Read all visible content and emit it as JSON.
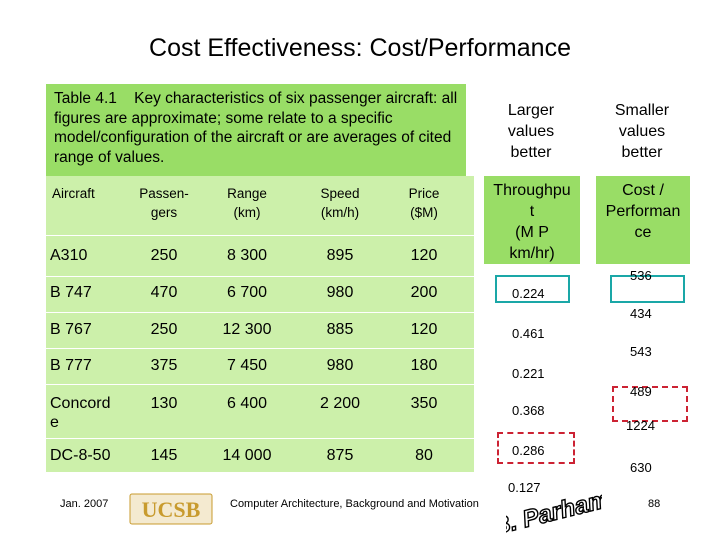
{
  "slide": {
    "title": "Cost Effectiveness: Cost/Performance",
    "caption": "Table 4.1    Key characteristics of six passenger aircraft: all figures are approximate; some relate to a specific model/configuration of the aircraft or are averages of cited range of values."
  },
  "table": {
    "headers": [
      "Aircraft",
      "Passen-\ngers",
      "Range\n(km)",
      "Speed\n(km/h)",
      "Price\n($M)"
    ],
    "rows": [
      [
        "A310",
        "250",
        "8 300",
        "895",
        "120"
      ],
      [
        "B 747",
        "470",
        "6 700",
        "980",
        "200"
      ],
      [
        "B 767",
        "250",
        "12 300",
        "885",
        "120"
      ],
      [
        "B 777",
        "375",
        "7 450",
        "980",
        "180"
      ],
      [
        "Concord\ne",
        "130",
        "6 400",
        "2 200",
        "350"
      ],
      [
        "DC-8-50",
        "145",
        "14 000",
        "875",
        "80"
      ]
    ]
  },
  "larger": {
    "header": "Larger\nvalues\nbetter",
    "box_label": "Throughpu\nt\n(M P\nkm/hr)",
    "values": [
      "0.224",
      "0.461",
      "0.221",
      "0.368",
      "0.286",
      "0.127"
    ]
  },
  "smaller": {
    "header": "Smaller\nvalues\nbetter",
    "box_label": "Cost /\nPerforman\nce",
    "values": [
      "536",
      "434",
      "543",
      "489",
      "1224",
      "630"
    ]
  },
  "footer": {
    "date": "Jan. 2007",
    "logo": "UCSB",
    "course": "Computer Architecture, Background and Motivation",
    "author": "B. Parhami",
    "page": "88"
  },
  "colors": {
    "green_dark": "#99dd66",
    "green_light": "#ccf0aa",
    "highlight_teal": "#1aa7a7",
    "highlight_red": "#cc2233",
    "logo_gold": "#c89b2e"
  }
}
